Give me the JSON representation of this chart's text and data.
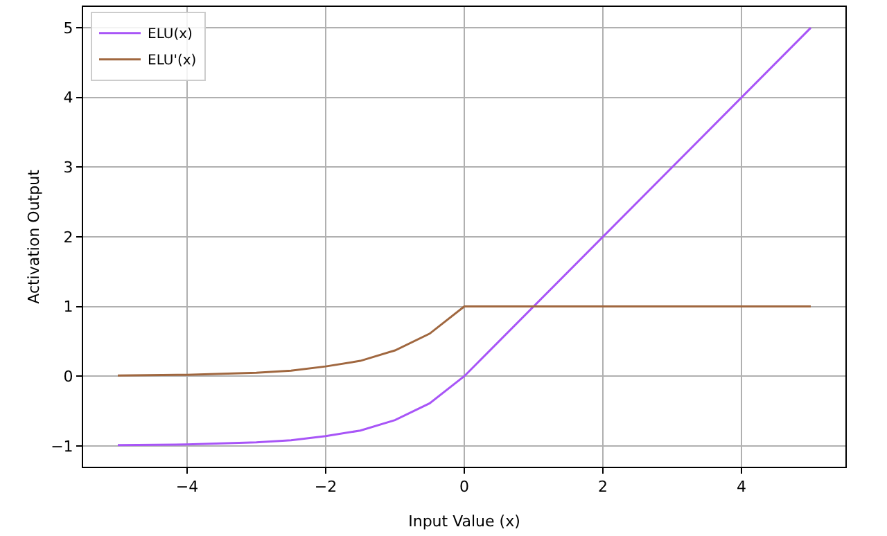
{
  "chart_data": {
    "type": "line",
    "xlabel": "Input Value (x)",
    "ylabel": "Activation Output",
    "xlim": [
      -5.5,
      5.5
    ],
    "ylim": [
      -1.3,
      5.3
    ],
    "xticks": [
      {
        "value": -4,
        "label": "−4"
      },
      {
        "value": -2,
        "label": "−2"
      },
      0,
      2,
      4
    ],
    "yticks": [
      {
        "value": -1,
        "label": "−1"
      },
      0,
      1,
      2,
      3,
      4,
      5
    ],
    "grid": true,
    "legend": "top left",
    "marker": "none",
    "line_style": "solid",
    "series": [
      {
        "name": "ELU(x)",
        "color": "#a855f7",
        "x": [
          -5,
          -4,
          -3,
          -2.5,
          -2,
          -1.5,
          -1,
          -0.5,
          0,
          5
        ],
        "values": [
          -0.99,
          -0.98,
          -0.95,
          -0.92,
          -0.86,
          -0.78,
          -0.63,
          -0.39,
          0,
          5
        ]
      },
      {
        "name": "ELU'(x)",
        "color": "#a0673f",
        "x": [
          -5,
          -4,
          -3,
          -2.5,
          -2,
          -1.5,
          -1,
          -0.5,
          0,
          5
        ],
        "values": [
          0.01,
          0.02,
          0.05,
          0.08,
          0.14,
          0.22,
          0.37,
          0.61,
          1,
          1
        ]
      }
    ]
  }
}
